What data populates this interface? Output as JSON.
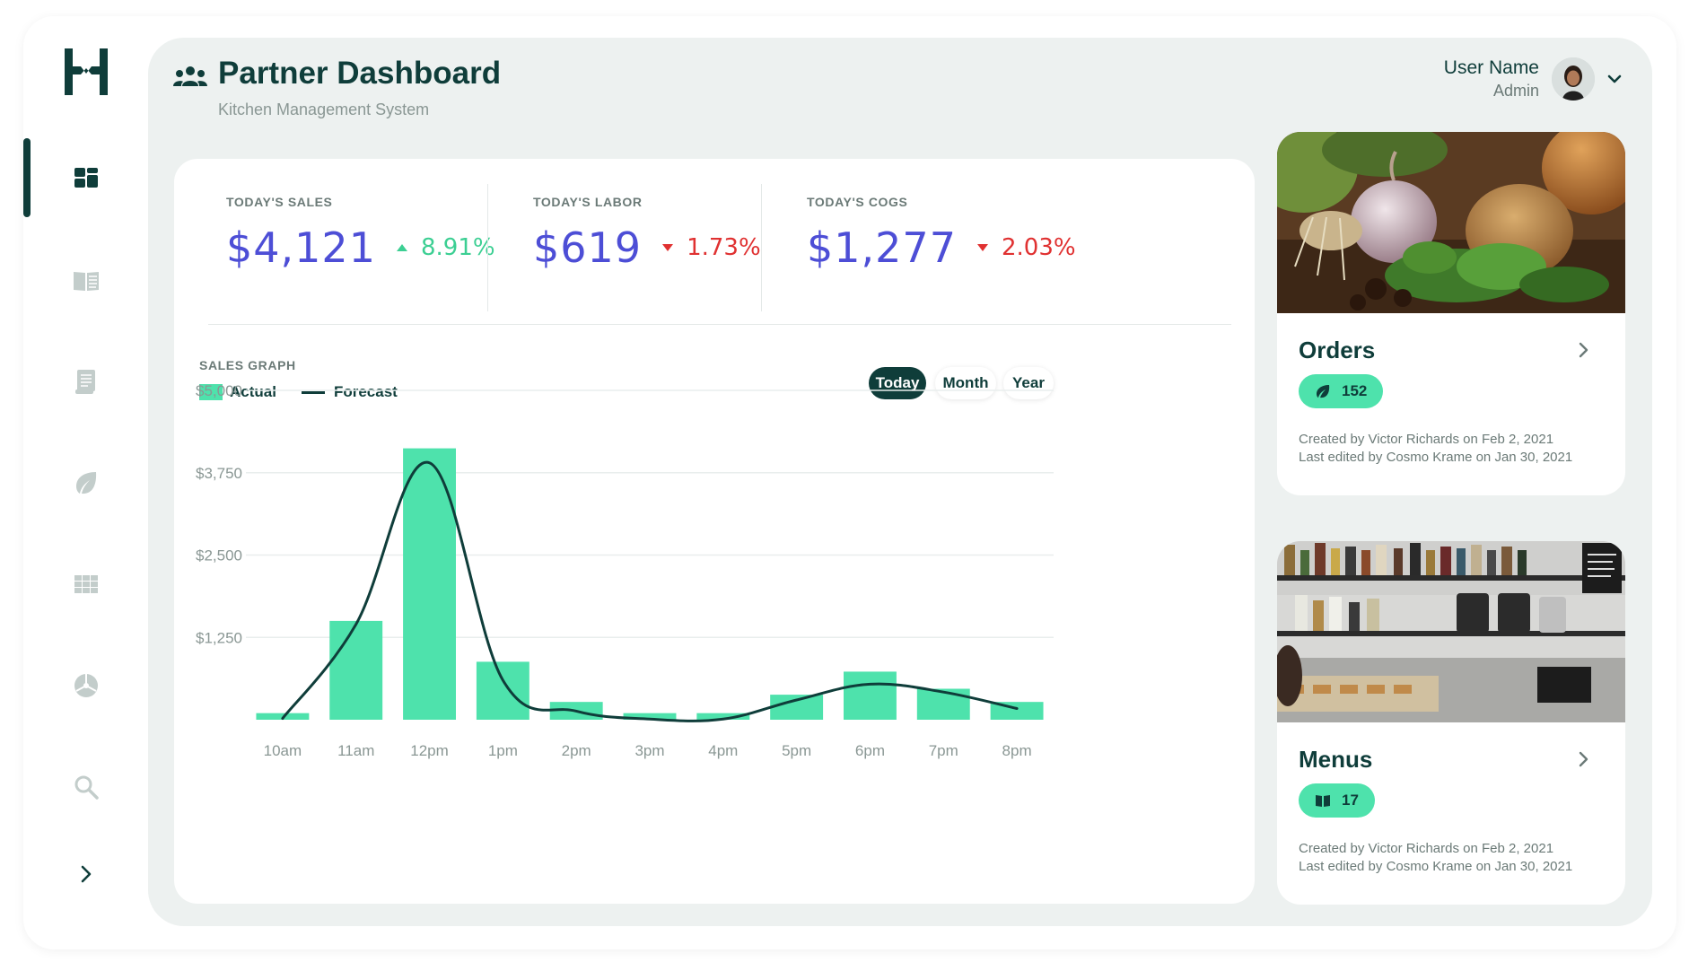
{
  "app": {
    "title": "Partner Dashboard",
    "subtitle": "Kitchen Management System"
  },
  "user": {
    "name": "User Name",
    "role": "Admin"
  },
  "sidebar": {
    "items": [
      {
        "id": "dashboard",
        "icon": "dashboard-icon",
        "active": true
      },
      {
        "id": "menus",
        "icon": "book-icon",
        "active": false
      },
      {
        "id": "orders",
        "icon": "receipt-icon",
        "active": false
      },
      {
        "id": "ingredients",
        "icon": "leaf-icon",
        "active": false
      },
      {
        "id": "grid",
        "icon": "grid-icon",
        "active": false
      },
      {
        "id": "analytics",
        "icon": "pie-icon",
        "active": false
      },
      {
        "id": "search",
        "icon": "search-icon",
        "active": false
      },
      {
        "id": "expand",
        "icon": "chevron-right-icon",
        "active": false
      }
    ]
  },
  "stats": [
    {
      "label": "TODAY'S SALES",
      "value": "$4,121",
      "delta": "8.91%",
      "direction": "up"
    },
    {
      "label": "TODAY'S LABOR",
      "value": "$619",
      "delta": "1.73%",
      "direction": "down"
    },
    {
      "label": "TODAY'S COGS",
      "value": "$1,277",
      "delta": "2.03%",
      "direction": "down"
    }
  ],
  "graph": {
    "label": "SALES GRAPH",
    "legend": {
      "actual": "Actual",
      "forecast": "Forecast"
    },
    "ranges": [
      {
        "label": "Today",
        "active": true
      },
      {
        "label": "Month",
        "active": false
      },
      {
        "label": "Year",
        "active": false
      }
    ]
  },
  "chart_data": {
    "type": "bar",
    "categories": [
      "10am",
      "11am",
      "12pm",
      "1pm",
      "2pm",
      "3pm",
      "4pm",
      "5pm",
      "6pm",
      "7pm",
      "8pm"
    ],
    "series": [
      {
        "name": "Actual",
        "type": "bar",
        "values": [
          100,
          1500,
          4120,
          880,
          270,
          100,
          100,
          380,
          730,
          470,
          270
        ]
      },
      {
        "name": "Forecast",
        "type": "line",
        "values": [
          20,
          1450,
          3900,
          600,
          130,
          10,
          10,
          300,
          540,
          420,
          170
        ]
      }
    ],
    "y_ticks": [
      "$5,000",
      "$3,750",
      "$2,500",
      "$1,250"
    ],
    "ylim": [
      0,
      5000
    ],
    "grid": true,
    "legend_position": "top-left",
    "colors": {
      "bar": "#4ee2ac",
      "line": "#0f3d3a",
      "grid": "#e9eeed"
    }
  },
  "orders": {
    "title": "Orders",
    "count": "152",
    "created": "Created by Victor Richards on Feb 2, 2021",
    "edited": "Last edited by Cosmo Krame on Jan 30, 2021"
  },
  "menus": {
    "title": "Menus",
    "count": "17",
    "created": "Created by Victor Richards on Feb 2, 2021",
    "edited": "Last edited by Cosmo Krame on Jan 30, 2021"
  },
  "colors": {
    "brand": "#0f3d3a",
    "accent": "#4ee2ac",
    "value": "#4d4ed6",
    "up": "#3ccf93",
    "down": "#e03131",
    "panel": "#edf1f0"
  }
}
